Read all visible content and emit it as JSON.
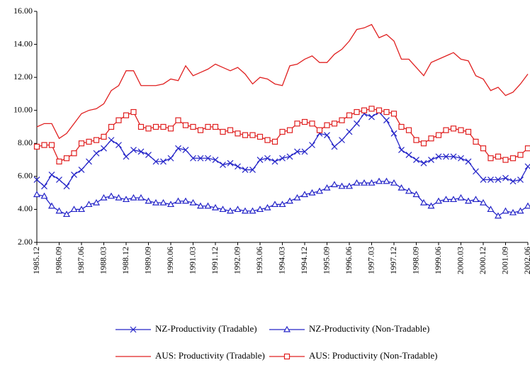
{
  "chart_data": {
    "type": "line",
    "ylim": [
      2,
      16
    ],
    "yticks": [
      {
        "value": 2,
        "label": "2.00"
      },
      {
        "value": 4,
        "label": "4.00"
      },
      {
        "value": 6,
        "label": "6.00"
      },
      {
        "value": 8,
        "label": "8.00"
      },
      {
        "value": 10,
        "label": "10.00"
      },
      {
        "value": 12,
        "label": "12.00"
      },
      {
        "value": 14,
        "label": "14.00"
      },
      {
        "value": 16,
        "label": "16.00"
      }
    ],
    "grid": false,
    "categories": [
      "1985.12",
      null,
      null,
      "1986.09",
      null,
      null,
      "1987.06",
      null,
      null,
      "1988.03",
      null,
      null,
      "1988.12",
      null,
      null,
      "1989.09",
      null,
      null,
      "1990.06",
      null,
      null,
      "1991.03",
      null,
      null,
      "1991.12",
      null,
      null,
      "1992.09",
      null,
      null,
      "1993.06",
      null,
      null,
      "1994.03",
      null,
      null,
      "1994.12",
      null,
      null,
      "1995.09",
      null,
      null,
      "1996.06",
      null,
      null,
      "1997.03",
      null,
      null,
      "1997.12",
      null,
      null,
      "1998.09",
      null,
      null,
      "1999.06",
      null,
      null,
      "2000.03",
      null,
      null,
      "2000.12",
      null,
      null,
      "2001.09",
      null,
      null,
      "2002.06"
    ],
    "series": [
      {
        "name": "NZ-Productivity (Tradable)",
        "color": "#2424c8",
        "marker": "x",
        "values": [
          5.8,
          5.4,
          6.1,
          5.8,
          5.4,
          6.1,
          6.4,
          6.9,
          7.4,
          7.7,
          8.2,
          7.9,
          7.2,
          7.6,
          7.5,
          7.3,
          6.9,
          6.9,
          7.1,
          7.7,
          7.6,
          7.1,
          7.1,
          7.1,
          7.0,
          6.7,
          6.8,
          6.6,
          6.4,
          6.4,
          7.0,
          7.1,
          6.9,
          7.1,
          7.2,
          7.5,
          7.5,
          7.9,
          8.6,
          8.5,
          7.8,
          8.2,
          8.7,
          9.2,
          9.8,
          9.6,
          9.9,
          9.4,
          8.6,
          7.6,
          7.3,
          7.0,
          6.8,
          7.0,
          7.2,
          7.2,
          7.2,
          7.1,
          6.9,
          6.3,
          5.8,
          5.8,
          5.8,
          5.9,
          5.7,
          5.8,
          6.6
        ]
      },
      {
        "name": "NZ-Productivity (Non-Tradable)",
        "color": "#2424c8",
        "marker": "triangle",
        "values": [
          4.9,
          4.8,
          4.2,
          3.9,
          3.7,
          4.0,
          4.0,
          4.3,
          4.4,
          4.7,
          4.8,
          4.7,
          4.6,
          4.7,
          4.7,
          4.5,
          4.4,
          4.4,
          4.3,
          4.5,
          4.5,
          4.4,
          4.2,
          4.2,
          4.1,
          4.0,
          3.9,
          4.0,
          3.9,
          3.9,
          4.0,
          4.1,
          4.3,
          4.3,
          4.5,
          4.7,
          4.9,
          5.0,
          5.1,
          5.3,
          5.5,
          5.4,
          5.4,
          5.6,
          5.6,
          5.6,
          5.7,
          5.7,
          5.6,
          5.3,
          5.1,
          4.9,
          4.4,
          4.2,
          4.5,
          4.6,
          4.6,
          4.7,
          4.5,
          4.6,
          4.4,
          4.0,
          3.6,
          3.9,
          3.8,
          3.9,
          4.2
        ]
      },
      {
        "name": "AUS: Productivity (Tradable)",
        "color": "#e02020",
        "marker": "none",
        "values": [
          9.0,
          9.2,
          9.2,
          8.3,
          8.6,
          9.2,
          9.8,
          10.0,
          10.1,
          10.4,
          11.2,
          11.5,
          12.4,
          12.4,
          11.5,
          11.5,
          11.5,
          11.6,
          11.9,
          11.8,
          12.7,
          12.1,
          12.3,
          12.5,
          12.8,
          12.6,
          12.4,
          12.6,
          12.2,
          11.6,
          12.0,
          11.9,
          11.6,
          11.5,
          12.7,
          12.8,
          13.1,
          13.3,
          12.9,
          12.9,
          13.4,
          13.7,
          14.2,
          14.9,
          15.0,
          15.2,
          14.4,
          14.6,
          14.2,
          13.1,
          13.1,
          12.6,
          12.1,
          12.9,
          13.1,
          13.3,
          13.5,
          13.1,
          13.0,
          12.1,
          11.9,
          11.2,
          11.4,
          10.9,
          11.1,
          11.6,
          12.2
        ]
      },
      {
        "name": "AUS: Productivity (Non-Tradable)",
        "color": "#e02020",
        "marker": "square",
        "values": [
          7.8,
          7.9,
          7.9,
          6.9,
          7.1,
          7.4,
          8.0,
          8.1,
          8.2,
          8.4,
          9.0,
          9.4,
          9.7,
          9.9,
          9.0,
          8.9,
          9.0,
          9.0,
          8.9,
          9.4,
          9.1,
          9.0,
          8.8,
          9.0,
          9.0,
          8.7,
          8.8,
          8.6,
          8.5,
          8.5,
          8.4,
          8.2,
          8.1,
          8.7,
          8.8,
          9.2,
          9.3,
          9.2,
          8.8,
          9.1,
          9.2,
          9.4,
          9.7,
          9.9,
          10.0,
          10.1,
          10.0,
          9.9,
          9.8,
          9.0,
          8.8,
          8.2,
          8.0,
          8.3,
          8.5,
          8.8,
          8.9,
          8.8,
          8.7,
          8.1,
          7.7,
          7.1,
          7.2,
          7.0,
          7.1,
          7.3,
          7.7
        ]
      }
    ]
  }
}
